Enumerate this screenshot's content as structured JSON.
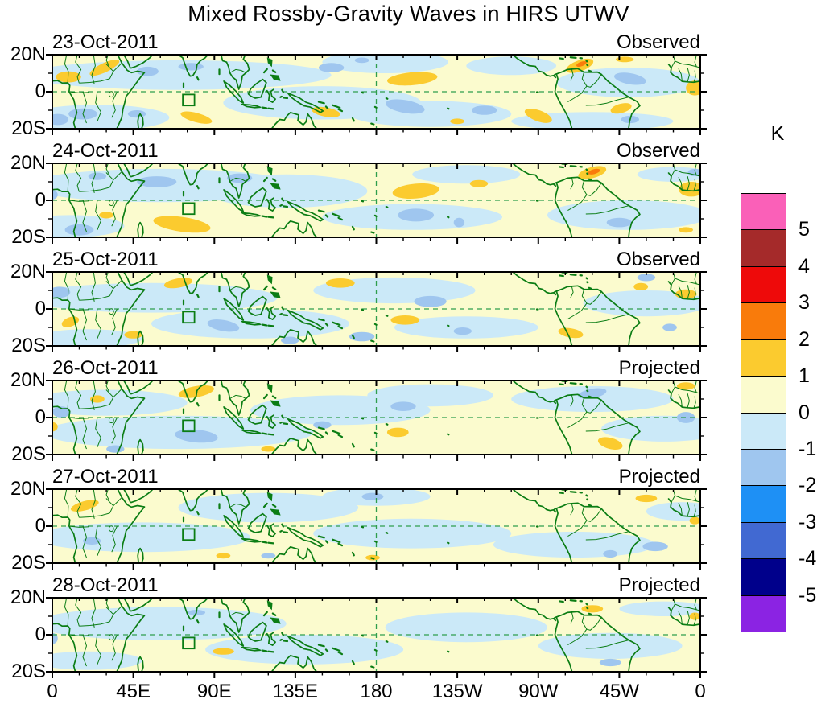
{
  "title": "Mixed Rossby-Gravity Waves in HIRS UTWV",
  "chart_data": {
    "type": "filled-contour-map-grid",
    "title": "Mixed Rossby-Gravity Waves in HIRS UTWV",
    "x_tick_labels": [
      "0",
      "45E",
      "90E",
      "135E",
      "180",
      "135W",
      "90W",
      "45W",
      "0"
    ],
    "y_tick_labels": [
      "20N",
      "0",
      "20S"
    ],
    "lon_range_deg": [
      0,
      360
    ],
    "lat_range_deg": [
      -20,
      20
    ],
    "colorbar": {
      "unit": "K",
      "tick_labels": [
        "5",
        "4",
        "3",
        "2",
        "1",
        "0",
        "-1",
        "-2",
        "-3",
        "-4",
        "-5"
      ],
      "levels": [
        5,
        4,
        3,
        2,
        1,
        0,
        -1,
        -2,
        -3,
        -4,
        -5
      ],
      "colors_top_to_bottom": [
        "#FA60B8",
        "#A52A2A",
        "#EE0A0A",
        "#F97B0B",
        "#FBCB2F",
        "#FBFBCE",
        "#CBE9F8",
        "#9FC6EF",
        "#1E90F5",
        "#4169D2",
        "#00008B",
        "#8B23E3"
      ]
    },
    "map_overlays": {
      "equator_dashed_line": true,
      "dateline_dashed_meridian_deg": 180,
      "box_marker_lon_deg": [
        72.5,
        79
      ],
      "box_marker_lat_deg": [
        -7.5,
        -1.5
      ]
    },
    "anomaly_legend": {
      "gold": "+1 to +2 K",
      "orange": "+2 to +3 K",
      "pale_yellow": "0 to +1 K",
      "pale_cyan": "-1 to 0 K",
      "blue": "-2 to -1 K"
    },
    "panels": [
      {
        "date": "23-Oct-2011",
        "label": "Observed",
        "gold": [
          [
            9,
            8,
            7,
            3,
            0
          ],
          [
            29,
            13,
            9,
            2.5,
            -25
          ],
          [
            200,
            7,
            14,
            3.5,
            -5
          ],
          [
            293,
            14,
            8,
            3,
            -20
          ],
          [
            318,
            17.5,
            5,
            1.5,
            0
          ],
          [
            357,
            2,
            5,
            4,
            0
          ],
          [
            80,
            -14,
            9,
            2.5,
            15
          ],
          [
            152,
            -11,
            8,
            2.5,
            10
          ],
          [
            270,
            -13,
            8,
            3,
            20
          ],
          [
            316,
            -9,
            6,
            2.5,
            -15
          ],
          [
            225,
            -16,
            4,
            1.5,
            0
          ]
        ],
        "orange": [
          [
            294,
            15,
            3,
            1.2,
            -20
          ]
        ],
        "blue": [
          [
            77,
            13.5,
            7,
            2,
            0
          ],
          [
            53,
            11,
            6,
            2.5,
            0
          ],
          [
            155,
            13,
            7,
            2.5,
            0
          ],
          [
            172,
            17,
            4,
            1.5,
            0
          ],
          [
            196,
            -8,
            11,
            3.5,
            10
          ],
          [
            240,
            -10,
            7,
            2.5,
            0
          ],
          [
            321,
            7,
            9,
            3,
            10
          ],
          [
            17,
            -12,
            8,
            3,
            0
          ],
          [
            3,
            -15,
            6,
            3,
            0
          ],
          [
            47,
            -12,
            5,
            2,
            0
          ],
          [
            321,
            -15,
            5,
            2,
            0
          ]
        ],
        "cyan": [
          [
            70,
            9,
            85,
            8
          ],
          [
            25,
            -14,
            40,
            7
          ],
          [
            150,
            -6,
            55,
            9
          ],
          [
            210,
            -12,
            45,
            7
          ],
          [
            185,
            16,
            35,
            6
          ],
          [
            320,
            5,
            40,
            8
          ],
          [
            255,
            14,
            25,
            5
          ],
          [
            300,
            -16,
            45,
            5
          ]
        ]
      },
      {
        "date": "24-Oct-2011",
        "label": "Observed",
        "gold": [
          [
            202,
            5,
            13,
            4,
            -5
          ],
          [
            237,
            9,
            5,
            2,
            0
          ],
          [
            300,
            15,
            8,
            3,
            -15
          ],
          [
            72,
            -13,
            16,
            4,
            8
          ],
          [
            30,
            -8,
            4,
            1.8,
            0
          ],
          [
            355,
            6,
            7,
            4,
            0
          ],
          [
            352,
            -16,
            4,
            1.5,
            0
          ]
        ],
        "orange": [
          [
            301,
            15.5,
            3.5,
            1.3,
            -15
          ]
        ],
        "blue": [
          [
            58,
            10,
            11,
            3,
            0
          ],
          [
            104,
            12,
            7,
            2.5,
            0
          ],
          [
            25,
            13,
            5,
            2,
            0
          ],
          [
            202,
            -8,
            10,
            3.5,
            0
          ],
          [
            226,
            -12,
            3,
            2.5,
            0
          ],
          [
            315,
            -12,
            7,
            2.5,
            0
          ],
          [
            15,
            -16,
            8,
            3,
            0
          ],
          [
            357,
            15,
            4,
            2,
            0
          ],
          [
            0,
            3,
            3,
            2.5,
            0
          ]
        ],
        "cyan": [
          [
            60,
            8,
            75,
            9
          ],
          [
            10,
            -14,
            30,
            6
          ],
          [
            130,
            5,
            45,
            9
          ],
          [
            200,
            -9,
            50,
            7
          ],
          [
            230,
            14,
            30,
            5
          ],
          [
            320,
            -8,
            45,
            8
          ],
          [
            345,
            14,
            20,
            4
          ]
        ]
      },
      {
        "date": "25-Oct-2011",
        "label": "Observed",
        "gold": [
          [
            70,
            14,
            8,
            2.5,
            -10
          ],
          [
            160,
            14,
            8,
            2.5,
            0
          ],
          [
            10,
            -7,
            5,
            2.5,
            -20
          ],
          [
            45,
            -14,
            5,
            2,
            0
          ],
          [
            196,
            -6,
            8,
            2.5,
            0
          ],
          [
            288,
            -13,
            7,
            2.5,
            10
          ],
          [
            352,
            8,
            6,
            2.5,
            0
          ],
          [
            327,
            12,
            4,
            2,
            0
          ]
        ],
        "orange": [],
        "blue": [
          [
            4,
            9,
            6,
            3,
            0
          ],
          [
            95,
            -9,
            9,
            3,
            10
          ],
          [
            172,
            -15,
            7,
            2.5,
            0
          ],
          [
            210,
            4,
            9,
            3,
            0
          ],
          [
            330,
            17,
            5,
            2,
            0
          ],
          [
            343,
            -10,
            4,
            2,
            0
          ],
          [
            132,
            -17,
            5,
            2,
            0
          ],
          [
            228,
            -12,
            5,
            2,
            0
          ]
        ],
        "cyan": [
          [
            55,
            6,
            70,
            8
          ],
          [
            110,
            -8,
            55,
            8
          ],
          [
            190,
            10,
            45,
            7
          ],
          [
            230,
            -10,
            40,
            6
          ],
          [
            330,
            3,
            35,
            7
          ],
          [
            20,
            -16,
            30,
            5
          ]
        ]
      },
      {
        "date": "26-Oct-2011",
        "label": "Projected",
        "gold": [
          [
            80,
            14,
            10,
            3,
            -10
          ],
          [
            25,
            10,
            4,
            2,
            0
          ],
          [
            192,
            -8,
            6,
            2.5,
            0
          ],
          [
            310,
            -14,
            7,
            3,
            15
          ],
          [
            352,
            17,
            5,
            2,
            0
          ],
          [
            0,
            -5,
            3,
            2.5,
            0
          ],
          [
            120,
            -17,
            4,
            1.5,
            0
          ]
        ],
        "orange": [],
        "blue": [
          [
            80,
            -10,
            12,
            3.5,
            5
          ],
          [
            5,
            3,
            5,
            3,
            0
          ],
          [
            195,
            6,
            7,
            2.5,
            0
          ],
          [
            300,
            13,
            8,
            2.5,
            -10
          ],
          [
            352,
            0,
            5,
            3,
            0
          ],
          [
            35,
            -17,
            5,
            2,
            0
          ],
          [
            150,
            -4,
            5,
            2,
            0
          ]
        ],
        "cyan": [
          [
            70,
            -8,
            75,
            9
          ],
          [
            30,
            8,
            45,
            7
          ],
          [
            160,
            4,
            50,
            8
          ],
          [
            210,
            12,
            35,
            6
          ],
          [
            300,
            10,
            45,
            7
          ],
          [
            340,
            -6,
            35,
            7
          ]
        ]
      },
      {
        "date": "27-Oct-2011",
        "label": "Projected",
        "gold": [
          [
            18,
            11,
            8,
            2.5,
            -15
          ],
          [
            95,
            -16,
            4,
            1.5,
            0
          ],
          [
            178,
            -17,
            4,
            1.5,
            0
          ],
          [
            330,
            15,
            6,
            2,
            0
          ],
          [
            357,
            3,
            3,
            2,
            0
          ]
        ],
        "orange": [],
        "blue": [
          [
            178,
            16,
            6,
            2,
            0
          ],
          [
            22,
            -8,
            5,
            2,
            0
          ],
          [
            335,
            -11,
            7,
            2.5,
            0
          ],
          [
            310,
            -15,
            4,
            2,
            0
          ],
          [
            120,
            -16,
            4,
            1.5,
            0
          ]
        ],
        "cyan": [
          [
            50,
            -6,
            60,
            8
          ],
          [
            120,
            10,
            50,
            8
          ],
          [
            200,
            -4,
            55,
            8
          ],
          [
            290,
            -10,
            45,
            7
          ],
          [
            180,
            16,
            30,
            5
          ],
          [
            350,
            8,
            20,
            5
          ]
        ]
      },
      {
        "date": "28-Oct-2011",
        "label": "Projected",
        "gold": [
          [
            300,
            14,
            6,
            2,
            0
          ],
          [
            95,
            -9,
            6,
            1.8,
            0
          ],
          [
            357,
            10,
            3,
            2,
            0
          ]
        ],
        "orange": [],
        "blue": [
          [
            80,
            12,
            5,
            1.5,
            0
          ],
          [
            310,
            -15,
            6,
            2,
            0
          ],
          [
            0,
            -2,
            3,
            3,
            0
          ]
        ],
        "cyan": [
          [
            60,
            6,
            70,
            9
          ],
          [
            140,
            -8,
            55,
            8
          ],
          [
            230,
            4,
            45,
            8
          ],
          [
            310,
            -6,
            40,
            7
          ],
          [
            20,
            -14,
            30,
            5
          ],
          [
            340,
            14,
            25,
            4
          ]
        ]
      }
    ]
  },
  "colors": {
    "base_fill": "#FBFBCE",
    "cyan_fill": "#CBE9F8",
    "gold_fill": "#FBCB2F",
    "blue_fill": "#9FC6EF",
    "orange_fill": "#F97B0B",
    "coast_green": "#0B7D14",
    "dashed_green": "#2F9E4D",
    "frame_black": "#000000"
  }
}
